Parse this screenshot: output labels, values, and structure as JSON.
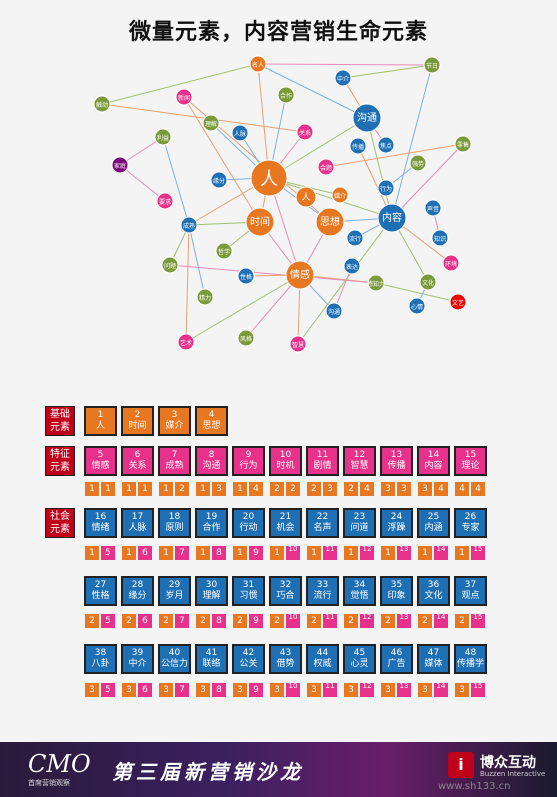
{
  "title": "微量元素，内容营销生命元素",
  "graph": {
    "nodes": [
      {
        "id": "ren",
        "label": "人",
        "color": "#e87722",
        "size": "xl"
      },
      {
        "id": "shijian",
        "label": "时间",
        "color": "#e87722",
        "size": "l"
      },
      {
        "id": "ren2",
        "label": "人",
        "color": "#e87722",
        "size": "m"
      },
      {
        "id": "sixiang",
        "label": "思想",
        "color": "#e87722",
        "size": "l"
      },
      {
        "id": "neirong",
        "label": "内容",
        "color": "#1f6fb5",
        "size": "l"
      },
      {
        "id": "goutong",
        "label": "沟通",
        "color": "#1f6fb5",
        "size": "l"
      },
      {
        "id": "qinggan",
        "label": "情感",
        "color": "#e87722",
        "size": "l"
      },
      {
        "id": "mingren",
        "label": "名人",
        "color": "#e87722",
        "size": "s"
      },
      {
        "id": "zhongjie",
        "label": "中介",
        "color": "#1f6fb5",
        "size": "s"
      },
      {
        "id": "jieri",
        "label": "节日",
        "color": "#7a9a3a",
        "size": "s"
      },
      {
        "id": "chudong",
        "label": "触动",
        "color": "#7a9a3a",
        "size": "s"
      },
      {
        "id": "xinwen",
        "label": "新闻",
        "color": "#e8318a",
        "size": "s"
      },
      {
        "id": "hezuo",
        "label": "合作",
        "color": "#7a9a3a",
        "size": "s"
      },
      {
        "id": "lijie",
        "label": "理解",
        "color": "#7a9a3a",
        "size": "s"
      },
      {
        "id": "renmai",
        "label": "人脉",
        "color": "#1f6fb5",
        "size": "s"
      },
      {
        "id": "guanxi",
        "label": "关系",
        "color": "#e8318a",
        "size": "s"
      },
      {
        "id": "liyi",
        "label": "利益",
        "color": "#7a9a3a",
        "size": "s"
      },
      {
        "id": "lingshou",
        "label": "零售",
        "color": "#7a9a3a",
        "size": "s"
      },
      {
        "id": "jiaodian",
        "label": "焦点",
        "color": "#1f6fb5",
        "size": "s"
      },
      {
        "id": "huiti",
        "label": "会题",
        "color": "#e8318a",
        "size": "s"
      },
      {
        "id": "chuanbo",
        "label": "传播",
        "color": "#1f6fb5",
        "size": "s"
      },
      {
        "id": "qiangshi",
        "label": "强势",
        "color": "#7a9a3a",
        "size": "s"
      },
      {
        "id": "jiating",
        "label": "家庭",
        "color": "#7a007a",
        "size": "s"
      },
      {
        "id": "yuanfen",
        "label": "缘分",
        "color": "#1f6fb5",
        "size": "s"
      },
      {
        "id": "meijie",
        "label": "媒介",
        "color": "#e87722",
        "size": "s"
      },
      {
        "id": "xingwei",
        "label": "行为",
        "color": "#1f6fb5",
        "size": "s"
      },
      {
        "id": "chengzhang",
        "label": "成熟",
        "color": "#1f6fb5",
        "size": "s"
      },
      {
        "id": "yaoqiu",
        "label": "要求",
        "color": "#e8318a",
        "size": "s"
      },
      {
        "id": "shengsheng",
        "label": "声音",
        "color": "#1f6fb5",
        "size": "s"
      },
      {
        "id": "zhishi",
        "label": "知识",
        "color": "#1f6fb5",
        "size": "s"
      },
      {
        "id": "zhexue",
        "label": "哲学",
        "color": "#7a9a3a",
        "size": "s"
      },
      {
        "id": "liuxing",
        "label": "流行",
        "color": "#1f6fb5",
        "size": "s"
      },
      {
        "id": "wenti",
        "label": "问题",
        "color": "#7a9a3a",
        "size": "s"
      },
      {
        "id": "xingge",
        "label": "性格",
        "color": "#1f6fb5",
        "size": "s"
      },
      {
        "id": "biaoda",
        "label": "表达",
        "color": "#1f6fb5",
        "size": "s"
      },
      {
        "id": "ganzhi",
        "label": "感知力",
        "color": "#7a9a3a",
        "size": "s"
      },
      {
        "id": "wenhua",
        "label": "文化",
        "color": "#7a9a3a",
        "size": "s"
      },
      {
        "id": "jingli",
        "label": "精力",
        "color": "#7a9a3a",
        "size": "s"
      },
      {
        "id": "gouyong",
        "label": "沟通",
        "color": "#1f6fb5",
        "size": "s"
      },
      {
        "id": "zhihui",
        "label": "智慧",
        "color": "#e8318a",
        "size": "s"
      },
      {
        "id": "wenyi",
        "label": "文艺",
        "color": "#e00",
        "size": "s"
      },
      {
        "id": "yishu",
        "label": "艺术",
        "color": "#e8318a",
        "size": "s"
      },
      {
        "id": "xinqing",
        "label": "心情",
        "color": "#1f6fb5",
        "size": "s"
      },
      {
        "id": "fengge",
        "label": "风格",
        "color": "#7a9a3a",
        "size": "s"
      },
      {
        "id": "huanjing",
        "label": "环境",
        "color": "#e8318a",
        "size": "s"
      }
    ]
  },
  "legend_rows": {
    "basic": {
      "label": "基础元素"
    },
    "feature": {
      "label": "特征元素"
    },
    "social": {
      "label": "社会元素"
    }
  },
  "tiles": [
    {
      "num": "1",
      "name": "人",
      "color": "o"
    },
    {
      "num": "2",
      "name": "时间",
      "color": "o"
    },
    {
      "num": "3",
      "name": "媒介",
      "color": "o"
    },
    {
      "num": "4",
      "name": "思想",
      "color": "o"
    },
    {
      "num": "5",
      "name": "情感",
      "color": "p"
    },
    {
      "num": "6",
      "name": "关系",
      "color": "p"
    },
    {
      "num": "7",
      "name": "成熟",
      "color": "p"
    },
    {
      "num": "8",
      "name": "沟通",
      "color": "p"
    },
    {
      "num": "9",
      "name": "行为",
      "color": "p"
    },
    {
      "num": "10",
      "name": "时机",
      "color": "p"
    },
    {
      "num": "11",
      "name": "剧情",
      "color": "p"
    },
    {
      "num": "12",
      "name": "智慧",
      "color": "p"
    },
    {
      "num": "13",
      "name": "传播",
      "color": "p"
    },
    {
      "num": "14",
      "name": "内容",
      "color": "p"
    },
    {
      "num": "15",
      "name": "理论",
      "color": "p"
    },
    {
      "num": "16",
      "name": "情绪",
      "color": "b"
    },
    {
      "num": "17",
      "name": "人脉",
      "color": "b"
    },
    {
      "num": "18",
      "name": "原则",
      "color": "b"
    },
    {
      "num": "19",
      "name": "合作",
      "color": "b"
    },
    {
      "num": "20",
      "name": "行动",
      "color": "b"
    },
    {
      "num": "21",
      "name": "机会",
      "color": "b"
    },
    {
      "num": "22",
      "name": "名声",
      "color": "b"
    },
    {
      "num": "23",
      "name": "问道",
      "color": "b"
    },
    {
      "num": "24",
      "name": "浮躁",
      "color": "b"
    },
    {
      "num": "25",
      "name": "内涵",
      "color": "b"
    },
    {
      "num": "26",
      "name": "专家",
      "color": "b"
    },
    {
      "num": "27",
      "name": "性格",
      "color": "b"
    },
    {
      "num": "28",
      "name": "缘分",
      "color": "b"
    },
    {
      "num": "29",
      "name": "岁月",
      "color": "b"
    },
    {
      "num": "30",
      "name": "理解",
      "color": "b"
    },
    {
      "num": "31",
      "name": "习惯",
      "color": "b"
    },
    {
      "num": "32",
      "name": "巧合",
      "color": "b"
    },
    {
      "num": "33",
      "name": "流行",
      "color": "b"
    },
    {
      "num": "34",
      "name": "觉悟",
      "color": "b"
    },
    {
      "num": "35",
      "name": "印象",
      "color": "b"
    },
    {
      "num": "36",
      "name": "文化",
      "color": "b"
    },
    {
      "num": "37",
      "name": "观点",
      "color": "b"
    },
    {
      "num": "38",
      "name": "八卦",
      "color": "b"
    },
    {
      "num": "39",
      "name": "中介",
      "color": "b"
    },
    {
      "num": "40",
      "name": "公信力",
      "color": "b"
    },
    {
      "num": "41",
      "name": "联络",
      "color": "b"
    },
    {
      "num": "42",
      "name": "公关",
      "color": "b"
    },
    {
      "num": "43",
      "name": "借势",
      "color": "b"
    },
    {
      "num": "44",
      "name": "权威",
      "color": "b"
    },
    {
      "num": "45",
      "name": "心灵",
      "color": "b"
    },
    {
      "num": "46",
      "name": "广告",
      "color": "b"
    },
    {
      "num": "47",
      "name": "媒体",
      "color": "b"
    },
    {
      "num": "48",
      "name": "传播学",
      "color": "b"
    }
  ],
  "pairs_row1": [
    [
      "1",
      "1"
    ],
    [
      "1",
      "1"
    ],
    [
      "1",
      "2"
    ],
    [
      "1",
      "3"
    ],
    [
      "1",
      "4"
    ],
    [
      "2",
      "2"
    ],
    [
      "2",
      "3"
    ],
    [
      "2",
      "4"
    ],
    [
      "3",
      "3"
    ],
    [
      "3",
      "4"
    ],
    [
      "4",
      "4"
    ]
  ],
  "pairs_row2": [
    [
      "1",
      "5"
    ],
    [
      "1",
      "6"
    ],
    [
      "1",
      "7"
    ],
    [
      "1",
      "8"
    ],
    [
      "1",
      "9"
    ],
    [
      "1",
      "10"
    ],
    [
      "1",
      "11"
    ],
    [
      "1",
      "12"
    ],
    [
      "1",
      "13"
    ],
    [
      "1",
      "14"
    ],
    [
      "1",
      "15"
    ]
  ],
  "pairs_row3": [
    [
      "2",
      "5"
    ],
    [
      "2",
      "6"
    ],
    [
      "2",
      "7"
    ],
    [
      "2",
      "8"
    ],
    [
      "2",
      "9"
    ],
    [
      "2",
      "10"
    ],
    [
      "2",
      "11"
    ],
    [
      "2",
      "12"
    ],
    [
      "2",
      "13"
    ],
    [
      "2",
      "14"
    ],
    [
      "2",
      "15"
    ]
  ],
  "pairs_row4": [
    [
      "3",
      "5"
    ],
    [
      "3",
      "6"
    ],
    [
      "3",
      "7"
    ],
    [
      "3",
      "8"
    ],
    [
      "3",
      "9"
    ],
    [
      "3",
      "10"
    ],
    [
      "3",
      "11"
    ],
    [
      "3",
      "12"
    ],
    [
      "3",
      "13"
    ],
    [
      "3",
      "14"
    ],
    [
      "3",
      "15"
    ]
  ],
  "banner": {
    "cmo": "CMO",
    "cmo_sub": "首席营销观察",
    "salon": "第三届新营销沙龙",
    "logo_mark": "i",
    "logo_text": "博众互动",
    "logo_sub": "Buzzen Interactive"
  },
  "watermark": "www.sh133.cn"
}
